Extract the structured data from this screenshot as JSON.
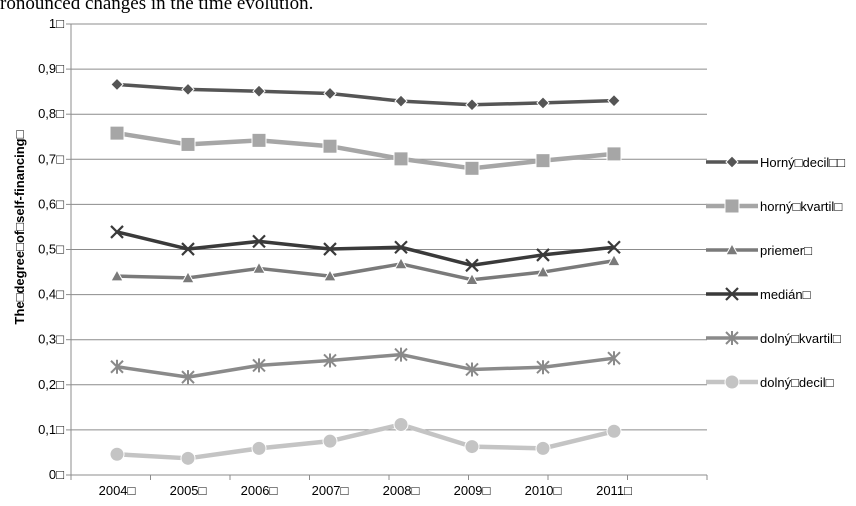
{
  "header": {
    "text": "ronounced changes in the time evolution."
  },
  "chart_data": {
    "type": "line",
    "title": "",
    "xlabel": "",
    "ylabel": "The□degree□of□self-financing□",
    "ylim": [
      0,
      1
    ],
    "grid": true,
    "legend_position": "right",
    "categories": [
      "2004□",
      "2005□",
      "2006□",
      "2007□",
      "2008□",
      "2009□",
      "2010□",
      "2011□"
    ],
    "y_ticks": [
      0,
      0.1,
      0.2,
      0.3,
      0.4,
      0.5,
      0.6,
      0.7,
      0.8,
      0.9,
      1
    ],
    "y_tick_labels": [
      "0□",
      "0,1□",
      "0,2□",
      "0,3□",
      "0,4□",
      "0,5□",
      "0,6□",
      "0,7□",
      "0,8□",
      "0,9□",
      "1□"
    ],
    "series": [
      {
        "name": "Horný□decil□□",
        "marker": "diamond",
        "color": "#555555",
        "values": [
          0.866,
          0.855,
          0.851,
          0.846,
          0.829,
          0.821,
          0.825,
          0.83
        ]
      },
      {
        "name": "horný□kvartil□",
        "marker": "square",
        "color": "#a6a6a6",
        "values": [
          0.758,
          0.733,
          0.742,
          0.729,
          0.701,
          0.68,
          0.697,
          0.712
        ]
      },
      {
        "name": "priemer□",
        "marker": "triangle",
        "color": "#7a7a7a",
        "values": [
          0.441,
          0.437,
          0.458,
          0.441,
          0.468,
          0.433,
          0.45,
          0.475
        ]
      },
      {
        "name": "medián□",
        "marker": "x",
        "color": "#3a3a3a",
        "values": [
          0.539,
          0.501,
          0.518,
          0.501,
          0.505,
          0.465,
          0.488,
          0.505
        ]
      },
      {
        "name": "dolný□kvartil□",
        "marker": "star",
        "color": "#8a8a8a",
        "values": [
          0.24,
          0.217,
          0.243,
          0.254,
          0.267,
          0.234,
          0.239,
          0.259
        ]
      },
      {
        "name": "dolný□decil□",
        "marker": "circle",
        "color": "#c4c4c4",
        "values": [
          0.046,
          0.037,
          0.059,
          0.075,
          0.112,
          0.063,
          0.059,
          0.097
        ]
      }
    ]
  }
}
